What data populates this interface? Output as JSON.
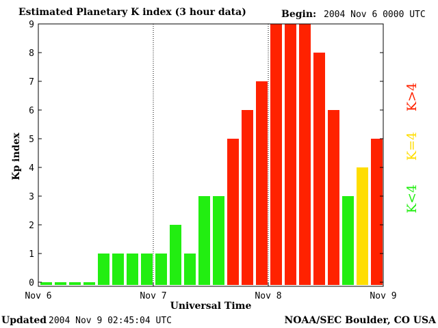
{
  "header": {
    "title": "Estimated Planetary K index (3 hour data)",
    "begin_label": "Begin:",
    "begin_value": "2004 Nov 6 0000 UTC"
  },
  "footer": {
    "updated_label": "Updated",
    "updated_value": "2004 Nov  9 02:45:04 UTC",
    "org": "NOAA/SEC Boulder, CO USA"
  },
  "colors": {
    "low": "#22ee11",
    "mid": "#ffdd00",
    "high": "#ff2200"
  },
  "legend": {
    "low": "K<4",
    "mid": "K=4",
    "high": "K>4"
  },
  "chart_data": {
    "type": "bar",
    "xlabel": "Universal Time",
    "ylabel": "Kp index",
    "ylim": [
      0,
      9
    ],
    "yticks": [
      0,
      1,
      2,
      3,
      4,
      5,
      6,
      7,
      8,
      9
    ],
    "xticks": [
      "Nov 6",
      "Nov 7",
      "Nov 8",
      "Nov 9"
    ],
    "day_separators": [
      "Nov 7",
      "Nov 8"
    ],
    "values": [
      0,
      0,
      0,
      0,
      1,
      1,
      1,
      1,
      1,
      2,
      1,
      3,
      3,
      5,
      6,
      7,
      9,
      9,
      9,
      8,
      6,
      3,
      4,
      5
    ]
  }
}
